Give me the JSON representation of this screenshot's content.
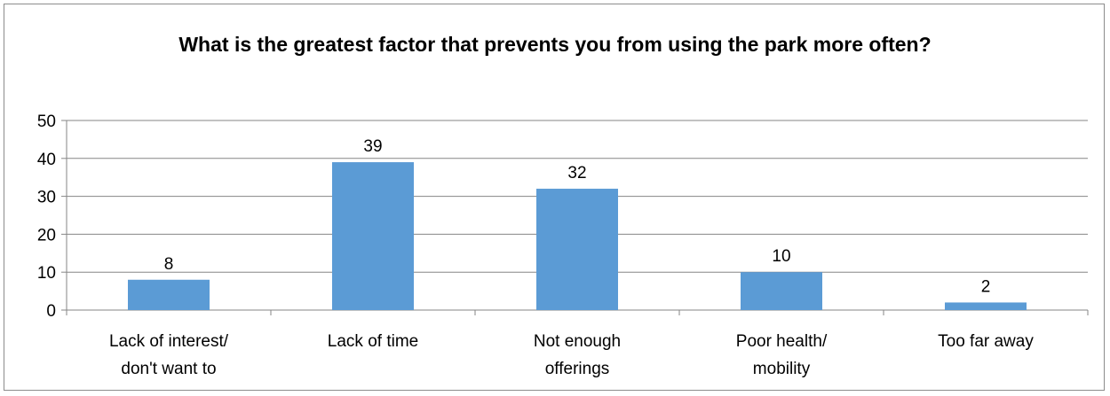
{
  "chart_data": {
    "type": "bar",
    "title": "What is the greatest factor that prevents you from using the park more often?",
    "categories": [
      [
        "Lack of interest/",
        "don't want to"
      ],
      [
        "Lack of time"
      ],
      [
        "Not enough",
        "offerings"
      ],
      [
        "Poor health/",
        "mobility"
      ],
      [
        "Too far away"
      ]
    ],
    "values": [
      8,
      39,
      32,
      10,
      2
    ],
    "ylim": [
      0,
      50
    ],
    "yticks": [
      0,
      10,
      20,
      30,
      40,
      50
    ],
    "xlabel": "",
    "ylabel": "",
    "grid": true,
    "legend": "none",
    "bar_color": "#5b9bd5",
    "data_labels": true
  }
}
